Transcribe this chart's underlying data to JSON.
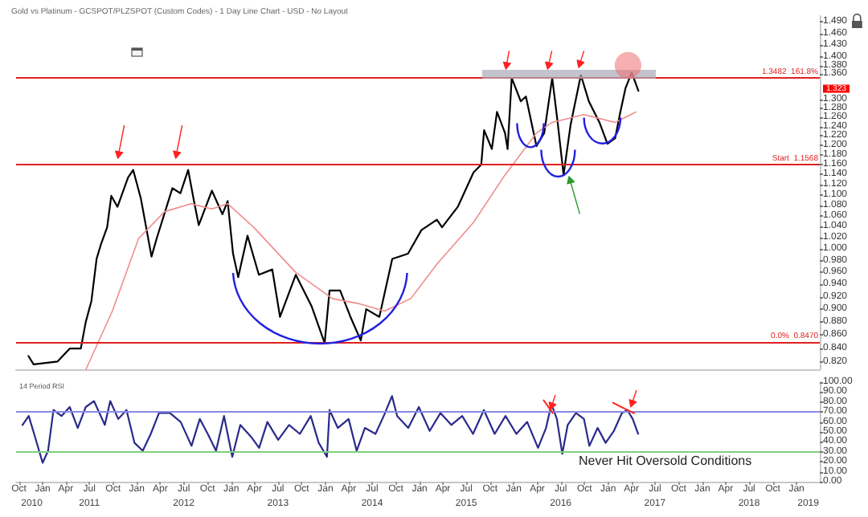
{
  "chart_data": [
    {
      "type": "line",
      "title": "Gold vs Platinum - GCSPOT/PLZSPOT (Custom Codes) - 1 Day Line Chart - USD - No Layout",
      "series": [
        {
          "color": "#000000",
          "x": [
            "2010-11-07",
            "2010-11-27",
            "2011-02-27",
            "2011-04-16",
            "2011-05-29",
            "2011-06-17",
            "2011-07-09",
            "2011-07-29",
            "2011-08-16",
            "2011-09-08",
            "2011-09-24",
            "2011-10-18",
            "2011-11-28",
            "2011-12-18",
            "2012-01-17",
            "2012-02-27",
            "2012-03-18",
            "2012-05-18",
            "2012-06-18",
            "2012-07-18",
            "2012-08-08",
            "2012-08-28",
            "2012-10-18",
            "2012-11-28",
            "2012-12-18",
            "2013-01-08",
            "2013-01-28",
            "2013-03-05",
            "2013-04-18",
            "2013-06-09",
            "2013-07-09",
            "2013-09-08",
            "2013-11-08",
            "2013-12-29",
            "2014-01-17",
            "2014-02-27",
            "2014-04-08",
            "2014-05-18",
            "2014-06-08",
            "2014-07-29",
            "2014-09-17",
            "2014-11-17",
            "2015-01-08",
            "2015-03-09",
            "2015-03-29",
            "2015-05-29",
            "2015-07-29",
            "2015-08-28",
            "2015-09-08",
            "2015-10-08",
            "2015-10-28",
            "2015-11-28",
            "2015-12-08",
            "2015-12-24",
            "2016-01-28",
            "2016-02-17",
            "2016-03-29",
            "2016-04-28",
            "2016-05-29",
            "2016-06-18",
            "2016-07-12",
            "2016-08-08",
            "2016-09-17",
            "2016-10-18",
            "2016-11-28",
            "2016-12-29",
            "2017-01-28",
            "2017-02-17",
            "2017-03-09",
            "2017-04-02",
            "2017-04-28"
          ],
          "values": [
            0.829,
            0.817,
            0.821,
            0.84,
            0.84,
            0.88,
            0.913,
            0.983,
            1.01,
            1.039,
            1.098,
            1.077,
            1.134,
            1.149,
            1.092,
            0.987,
            1.019,
            1.113,
            1.103,
            1.149,
            1.092,
            1.043,
            1.108,
            1.063,
            1.088,
            0.992,
            0.952,
            1.024,
            0.956,
            0.965,
            0.888,
            0.956,
            0.905,
            0.848,
            0.93,
            0.93,
            0.888,
            0.852,
            0.9,
            0.888,
            0.983,
            0.992,
            1.034,
            1.053,
            1.039,
            1.077,
            1.144,
            1.16,
            1.232,
            1.192,
            1.272,
            1.226,
            1.192,
            1.35,
            1.296,
            1.307,
            1.198,
            1.226,
            1.35,
            1.254,
            1.139,
            1.243,
            1.357,
            1.296,
            1.249,
            1.203,
            1.215,
            1.272,
            1.326,
            1.363,
            1.32
          ]
        },
        {
          "color": "#f08c8c",
          "x": [
            "2011-06-18",
            "2011-09-28",
            "2012-01-08",
            "2012-04-18",
            "2012-07-29",
            "2012-10-18",
            "2012-12-18",
            "2013-03-29",
            "2013-09-08",
            "2014-01-28",
            "2014-05-08",
            "2014-08-18",
            "2014-11-28",
            "2015-03-09",
            "2015-07-29",
            "2015-11-28",
            "2016-03-29",
            "2016-05-29",
            "2016-09-28",
            "2017-01-28",
            "2017-04-18"
          ],
          "values": [
            0.81,
            0.897,
            1.019,
            1.068,
            1.083,
            1.073,
            1.083,
            1.039,
            0.96,
            0.917,
            0.909,
            0.897,
            0.917,
            0.974,
            1.048,
            1.139,
            1.226,
            1.249,
            1.266,
            1.249,
            1.272
          ]
        }
      ],
      "xlim": [
        "2010-09-20",
        "2019-04-01"
      ],
      "ylim": [
        0.81,
        1.505
      ],
      "log": true,
      "yticks": [
        {
          "value": 0.82,
          "label": "0.820"
        },
        {
          "value": 0.84,
          "label": "0.840"
        },
        {
          "value": 0.86,
          "label": "0.860"
        },
        {
          "value": 0.88,
          "label": "0.880"
        },
        {
          "value": 0.9,
          "label": "0.900"
        },
        {
          "value": 0.92,
          "label": "0.920"
        },
        {
          "value": 0.94,
          "label": "0.940"
        },
        {
          "value": 0.96,
          "label": "0.960"
        },
        {
          "value": 0.98,
          "label": "0.980"
        },
        {
          "value": 1.0,
          "label": "1.000"
        },
        {
          "value": 1.02,
          "label": "1.020"
        },
        {
          "value": 1.04,
          "label": "1.040"
        },
        {
          "value": 1.06,
          "label": "1.060"
        },
        {
          "value": 1.08,
          "label": "1.080"
        },
        {
          "value": 1.1,
          "label": "1.100"
        },
        {
          "value": 1.12,
          "label": "1.120"
        },
        {
          "value": 1.14,
          "label": "1.140"
        },
        {
          "value": 1.16,
          "label": "1.160"
        },
        {
          "value": 1.18,
          "label": "1.180"
        },
        {
          "value": 1.2,
          "label": "1.200"
        },
        {
          "value": 1.22,
          "label": "1.220"
        },
        {
          "value": 1.24,
          "label": "1.240"
        },
        {
          "value": 1.26,
          "label": "1.260"
        },
        {
          "value": 1.28,
          "label": "1.280"
        },
        {
          "value": 1.3,
          "label": "1.300"
        },
        {
          "value": 1.36,
          "label": "1.360"
        },
        {
          "value": 1.38,
          "label": "1.380"
        },
        {
          "value": 1.4,
          "label": "1.400"
        },
        {
          "value": 1.43,
          "label": "1.430"
        },
        {
          "value": 1.46,
          "label": "1.460"
        },
        {
          "value": 1.49,
          "label": "1.490"
        }
      ],
      "ref_lines": [
        {
          "axis": "y",
          "value": 1.3482,
          "label": "1.3482  161.8%",
          "color": "#e02020"
        },
        {
          "axis": "y",
          "value": 1.1568,
          "label": "Start  1.1568",
          "color": "#e02020"
        },
        {
          "axis": "y",
          "value": 0.847,
          "label": "0.0%  0.8470",
          "color": "#e02020"
        }
      ],
      "annotations": [
        {
          "text": "1.323",
          "y": 1.323
        }
      ],
      "tick_labels": "y",
      "grid": false,
      "marker": "none",
      "line_style": "solid"
    },
    {
      "type": "line",
      "series": [
        {
          "color": "#2a2a8c",
          "x": [
            "2010-10-15",
            "2010-11-08",
            "2010-11-29",
            "2011-01-01",
            "2011-01-22",
            "2011-02-12",
            "2011-03-15",
            "2011-04-16",
            "2011-05-17",
            "2011-06-17",
            "2011-07-19",
            "2011-08-30",
            "2011-09-20",
            "2011-10-21",
            "2011-11-22",
            "2011-12-23",
            "2012-01-24",
            "2012-02-24",
            "2012-03-27",
            "2012-05-08",
            "2012-06-19",
            "2012-07-31",
            "2012-09-01",
            "2012-10-02",
            "2012-11-03",
            "2012-12-04",
            "2013-01-05",
            "2013-02-05",
            "2013-03-19",
            "2013-04-19",
            "2013-05-21",
            "2013-07-02",
            "2013-08-13",
            "2013-09-24",
            "2013-11-05",
            "2013-12-06",
            "2014-01-07",
            "2014-01-17",
            "2014-02-18",
            "2014-04-01",
            "2014-05-02",
            "2014-06-03",
            "2014-07-14",
            "2014-08-15",
            "2014-09-16",
            "2014-10-06",
            "2014-11-18",
            "2014-12-29",
            "2015-02-09",
            "2015-03-23",
            "2015-05-04",
            "2015-06-15",
            "2015-07-27",
            "2015-09-07",
            "2015-10-19",
            "2015-11-30",
            "2016-01-11",
            "2016-02-22",
            "2016-04-04",
            "2016-05-05",
            "2016-05-26",
            "2016-06-16",
            "2016-07-07",
            "2016-07-28",
            "2016-08-29",
            "2016-09-29",
            "2016-10-20",
            "2016-11-21",
            "2016-12-22",
            "2017-01-23",
            "2017-02-23",
            "2017-03-16",
            "2017-04-06",
            "2017-04-27"
          ],
          "values": [
            57,
            66,
            48,
            19,
            31,
            72,
            66,
            75,
            54,
            75,
            81,
            57,
            81,
            63,
            72,
            39,
            31,
            48,
            69,
            69,
            60,
            36,
            63,
            48,
            31,
            66,
            25,
            57,
            45,
            34,
            60,
            42,
            57,
            48,
            66,
            39,
            25,
            72,
            54,
            63,
            31,
            54,
            48,
            66,
            86,
            66,
            54,
            75,
            51,
            69,
            57,
            66,
            48,
            72,
            48,
            66,
            48,
            60,
            34,
            54,
            78,
            63,
            28,
            57,
            69,
            63,
            36,
            54,
            39,
            51,
            69,
            72,
            63,
            48
          ]
        }
      ],
      "xlim": [
        "2010-09-20",
        "2019-04-01"
      ],
      "ylim": [
        0,
        100
      ],
      "yticks": [
        {
          "value": 0,
          "label": "0.00"
        },
        {
          "value": 10,
          "label": "10.00"
        },
        {
          "value": 20,
          "label": "20.00"
        },
        {
          "value": 30,
          "label": "30.00"
        },
        {
          "value": 40,
          "label": "40.00"
        },
        {
          "value": 50,
          "label": "50.00"
        },
        {
          "value": 60,
          "label": "60.00"
        },
        {
          "value": 70,
          "label": "70.00"
        },
        {
          "value": 80,
          "label": "80.00"
        },
        {
          "value": 90,
          "label": "90.00"
        },
        {
          "value": 100,
          "label": "100.00"
        }
      ],
      "xticks": [
        {
          "value": "2010-10-01",
          "label": "Oct"
        },
        {
          "value": "2011-01-01",
          "label": "Jan"
        },
        {
          "value": "2011-04-01",
          "label": "Apr"
        },
        {
          "value": "2011-07-01",
          "label": "Jul"
        },
        {
          "value": "2011-10-01",
          "label": "Oct"
        },
        {
          "value": "2012-01-01",
          "label": "Jan"
        },
        {
          "value": "2012-04-01",
          "label": "Apr"
        },
        {
          "value": "2012-07-01",
          "label": "Jul"
        },
        {
          "value": "2012-10-01",
          "label": "Oct"
        },
        {
          "value": "2013-01-01",
          "label": "Jan"
        },
        {
          "value": "2013-04-01",
          "label": "Apr"
        },
        {
          "value": "2013-07-01",
          "label": "Jul"
        },
        {
          "value": "2013-10-01",
          "label": "Oct"
        },
        {
          "value": "2014-01-01",
          "label": "Jan"
        },
        {
          "value": "2014-04-01",
          "label": "Apr"
        },
        {
          "value": "2014-07-01",
          "label": "Jul"
        },
        {
          "value": "2014-10-01",
          "label": "Oct"
        },
        {
          "value": "2015-01-01",
          "label": "Jan"
        },
        {
          "value": "2015-04-01",
          "label": "Apr"
        },
        {
          "value": "2015-07-01",
          "label": "Jul"
        },
        {
          "value": "2015-10-01",
          "label": "Oct"
        },
        {
          "value": "2016-01-01",
          "label": "Jan"
        },
        {
          "value": "2016-04-01",
          "label": "Apr"
        },
        {
          "value": "2016-07-01",
          "label": "Jul"
        },
        {
          "value": "2016-10-01",
          "label": "Oct"
        },
        {
          "value": "2017-01-01",
          "label": "Jan"
        },
        {
          "value": "2017-04-01",
          "label": "Apr"
        },
        {
          "value": "2017-07-01",
          "label": "Jul"
        },
        {
          "value": "2017-10-01",
          "label": "Oct"
        },
        {
          "value": "2018-01-01",
          "label": "Jan"
        },
        {
          "value": "2018-04-01",
          "label": "Apr"
        },
        {
          "value": "2018-07-01",
          "label": "Jul"
        },
        {
          "value": "2018-10-01",
          "label": "Oct"
        },
        {
          "value": "2019-01-01",
          "label": "Jan"
        }
      ],
      "x2lim": [
        "2010-09-20",
        "2019-04-01"
      ],
      "x2ticks": [
        {
          "value": "2010-11-20",
          "label": "2010"
        },
        {
          "value": "2011-07-01",
          "label": "2011"
        },
        {
          "value": "2012-07-01",
          "label": "2012"
        },
        {
          "value": "2013-07-01",
          "label": "2013"
        },
        {
          "value": "2014-07-01",
          "label": "2014"
        },
        {
          "value": "2015-07-01",
          "label": "2015"
        },
        {
          "value": "2016-07-01",
          "label": "2016"
        },
        {
          "value": "2017-07-01",
          "label": "2017"
        },
        {
          "value": "2018-07-01",
          "label": "2018"
        },
        {
          "value": "2019-02-15",
          "label": "2019"
        }
      ],
      "ref_lines": [
        {
          "axis": "y",
          "value": 70,
          "color": "#8a8ae6"
        },
        {
          "axis": "y",
          "value": 30,
          "color": "#7fcf7f"
        }
      ],
      "annotations": [
        "14 Period RSI",
        "Never Hit Oversold Conditions"
      ],
      "grid": false,
      "marker": "none",
      "line_style": "solid"
    }
  ]
}
